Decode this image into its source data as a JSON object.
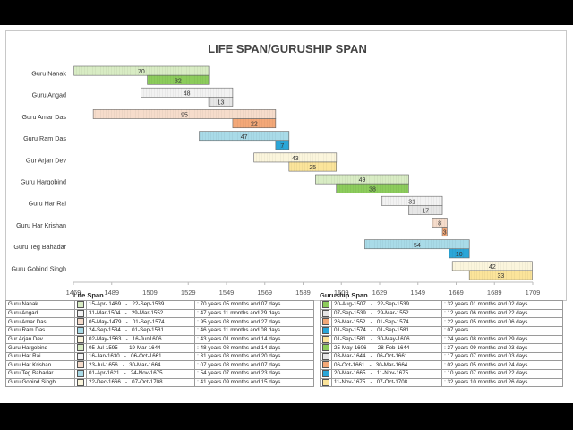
{
  "chart_data": {
    "type": "gantt",
    "title": "LIFE SPAN/GURUSHIP SPAN",
    "xlim": [
      1469,
      1709
    ],
    "xticks": [
      1469,
      1489,
      1509,
      1529,
      1549,
      1569,
      1589,
      1609,
      1629,
      1649,
      1669,
      1689,
      1709
    ],
    "rows": [
      {
        "name": "Guru Nanak",
        "life": {
          "start": 1469.29,
          "end": 1539.72,
          "label": "70",
          "color": "#d8ecc4"
        },
        "guruship": {
          "start": 1507.63,
          "end": 1539.72,
          "label": "32",
          "color": "#8ccc5c"
        }
      },
      {
        "name": "Guru Angad",
        "life": {
          "start": 1504.25,
          "end": 1552.24,
          "label": "48",
          "color": "#f2f2f2"
        },
        "guruship": {
          "start": 1539.68,
          "end": 1552.24,
          "label": "13",
          "color": "#e6e6e6"
        }
      },
      {
        "name": "Guru Amar Das",
        "life": {
          "start": 1479.35,
          "end": 1574.67,
          "label": "95",
          "color": "#f6dccb"
        },
        "guruship": {
          "start": 1552.24,
          "end": 1574.67,
          "label": "22",
          "color": "#f3a878"
        }
      },
      {
        "name": "Guru Ram Das",
        "life": {
          "start": 1534.73,
          "end": 1581.67,
          "label": "47",
          "color": "#a9dbe8"
        },
        "guruship": {
          "start": 1574.67,
          "end": 1581.67,
          "label": "7",
          "color": "#2aa6d8"
        }
      },
      {
        "name": "Gur Arjan Dev",
        "life": {
          "start": 1563.33,
          "end": 1606.46,
          "label": "43",
          "color": "#fbf5dc"
        },
        "guruship": {
          "start": 1581.67,
          "end": 1606.41,
          "label": "25",
          "color": "#fbe49a"
        }
      },
      {
        "name": "Guru Hargobind",
        "life": {
          "start": 1595.5,
          "end": 1644.22,
          "label": "49",
          "color": "#d8ecc4"
        },
        "guruship": {
          "start": 1606.4,
          "end": 1644.16,
          "label": "38",
          "color": "#8ccc5c"
        }
      },
      {
        "name": "Guru Har Rai",
        "life": {
          "start": 1630.04,
          "end": 1661.77,
          "label": "31",
          "color": "#f2f2f2"
        },
        "guruship": {
          "start": 1644.17,
          "end": 1661.77,
          "label": "17",
          "color": "#e6e6e6"
        }
      },
      {
        "name": "Guru Har Krishan",
        "life": {
          "start": 1656.56,
          "end": 1664.25,
          "label": "8",
          "color": "#f6dccb"
        },
        "guruship": {
          "start": 1661.77,
          "end": 1664.25,
          "label": "3",
          "color": "#f3a878"
        }
      },
      {
        "name": "Guru Teg Bahadar",
        "life": {
          "start": 1621.25,
          "end": 1675.9,
          "label": "54",
          "color": "#a9dbe8"
        },
        "guruship": {
          "start": 1665.22,
          "end": 1675.87,
          "label": "10",
          "color": "#2aa6d8"
        }
      },
      {
        "name": "Guru Gobind Singh",
        "life": {
          "start": 1666.98,
          "end": 1708.77,
          "label": "42",
          "color": "#fbf5dc"
        },
        "guruship": {
          "start": 1675.87,
          "end": 1708.77,
          "label": "33",
          "color": "#fbe49a"
        }
      }
    ]
  },
  "life_table": {
    "title": "Life Span",
    "rows": [
      {
        "name": "Guru Nanak",
        "color": "#d8ecc4",
        "from": "15-Apr- 1469",
        "to": "22-Sep-1539",
        "duration": "70 years 05 months and 07 days"
      },
      {
        "name": "Guru Angad",
        "color": "#f2f2f2",
        "from": "31-Mar-1504",
        "to": "29-Mar-1552",
        "duration": "47 years 11 months and 29 days"
      },
      {
        "name": "Guru Amar Das",
        "color": "#f6dccb",
        "from": "05-May-1479",
        "to": "01-Sep-1574",
        "duration": "95 years 03 months and 27 days"
      },
      {
        "name": "Guru Ram Das",
        "color": "#a9dbe8",
        "from": "24-Sep-1534",
        "to": "01-Sep-1581",
        "duration": "46 years 11 months and 08 days"
      },
      {
        "name": "Gur Arjan Dev",
        "color": "#fbf5dc",
        "from": "02-May-1563",
        "to": "16-Jun1606",
        "duration": "43 years 01 months and 14 days"
      },
      {
        "name": "Guru Hargobind",
        "color": "#d8ecc4",
        "from": "05-Jul-1595",
        "to": "19-Mar-1644",
        "duration": "48 years 08 months and 14 days"
      },
      {
        "name": "Guru Har Rai",
        "color": "#f2f2f2",
        "from": "16-Jan-1630",
        "to": "06-Oct-1661",
        "duration": "31 years 08 months and 20 days"
      },
      {
        "name": "Guru Har Krishan",
        "color": "#f6dccb",
        "from": "23-Jul-1656",
        "to": "30-Mar-1664",
        "duration": "07 years 08 months and 07 days"
      },
      {
        "name": "Guru Teg Bahadar",
        "color": "#a9dbe8",
        "from": "01-Apr-1621",
        "to": "24-Nov-1675",
        "duration": "54 years 07 months and 23 days"
      },
      {
        "name": "Guru Gobind Singh",
        "color": "#fbf5dc",
        "from": "22-Dec-1666",
        "to": "07-Oct-1708",
        "duration": "41 years 09 months and 15 days"
      }
    ]
  },
  "guruship_table": {
    "title": "Guruship Span",
    "rows": [
      {
        "color": "#8ccc5c",
        "from": "20-Aug-1507",
        "to": "22-Sep-1539",
        "duration": "32 years 01 months and 02 days"
      },
      {
        "color": "#e6e6e6",
        "from": "07-Sep-1539",
        "to": "29-Mar-1552",
        "duration": "12 years 06 months and 22 days"
      },
      {
        "color": "#f3a878",
        "from": "26-Mar-1552",
        "to": "01-Sep-1574",
        "duration": "22 years 05 months and 06 days"
      },
      {
        "color": "#2aa6d8",
        "from": "01-Sep-1574",
        "to": "01-Sep-1581",
        "duration": "07 years"
      },
      {
        "color": "#fbe49a",
        "from": "01-Sep-1581",
        "to": "30-May-1606",
        "duration": "24 years 08 months and 29 days"
      },
      {
        "color": "#8ccc5c",
        "from": "25-May-1606",
        "to": "28-Feb-1644",
        "duration": "37 years 09 months and 03 days"
      },
      {
        "color": "#e6e6e6",
        "from": "03-Mar-1644",
        "to": "06-Oct-1661",
        "duration": "17 years 07 months and 03 days"
      },
      {
        "color": "#f3a878",
        "from": "06-Oct-1661",
        "to": "30-Mar-1664",
        "duration": "02 years 05 months and 24 days"
      },
      {
        "color": "#2aa6d8",
        "from": "20-Mar-1665",
        "to": "11-Nov-1675",
        "duration": "10 years 07 months and 22 days"
      },
      {
        "color": "#fbe49a",
        "from": "11-Nov-1675",
        "to": "07-Oct-1708",
        "duration": "32 years 10 months and 26 days"
      }
    ]
  }
}
